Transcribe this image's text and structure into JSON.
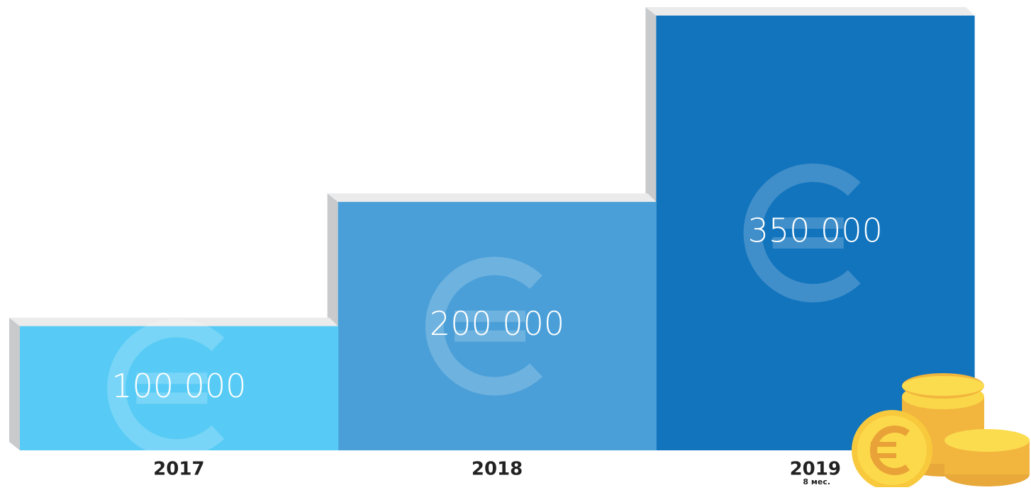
{
  "chart_data": {
    "type": "bar",
    "categories": [
      "2017",
      "2018",
      "2019"
    ],
    "values": [
      100000,
      200000,
      350000
    ],
    "value_labels": [
      "100 000",
      "200 000",
      "350 000"
    ],
    "colors": [
      "#57cbf5",
      "#4a9fd8",
      "#1274bd"
    ],
    "annotation": "8 мес."
  }
}
